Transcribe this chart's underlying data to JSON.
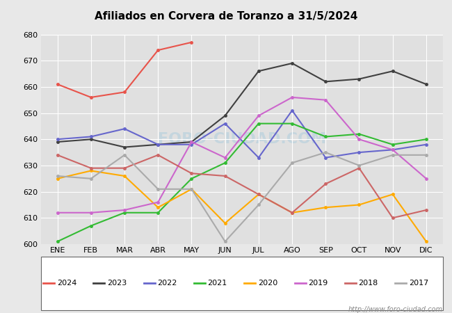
{
  "title": "Afiliados en Corvera de Toranzo a 31/5/2024",
  "ylim": [
    600,
    680
  ],
  "yticks": [
    600,
    610,
    620,
    630,
    640,
    650,
    660,
    670,
    680
  ],
  "months": [
    "ENE",
    "FEB",
    "MAR",
    "ABR",
    "MAY",
    "JUN",
    "JUL",
    "AGO",
    "SEP",
    "OCT",
    "NOV",
    "DIC"
  ],
  "series": {
    "2024": {
      "color": "#e8534a",
      "data": [
        661,
        656,
        658,
        674,
        677,
        null,
        null,
        null,
        null,
        null,
        null,
        null
      ]
    },
    "2023": {
      "color": "#404040",
      "data": [
        639,
        640,
        637,
        638,
        639,
        649,
        666,
        669,
        662,
        663,
        666,
        661
      ]
    },
    "2022": {
      "color": "#6666cc",
      "data": [
        640,
        641,
        644,
        638,
        638,
        646,
        633,
        651,
        633,
        635,
        636,
        638
      ]
    },
    "2021": {
      "color": "#33bb33",
      "data": [
        601,
        607,
        612,
        612,
        625,
        631,
        646,
        646,
        641,
        642,
        638,
        640
      ]
    },
    "2020": {
      "color": "#ffaa00",
      "data": [
        625,
        628,
        626,
        614,
        621,
        608,
        619,
        612,
        614,
        615,
        619,
        601
      ]
    },
    "2019": {
      "color": "#cc66cc",
      "data": [
        612,
        612,
        613,
        616,
        639,
        633,
        649,
        656,
        655,
        640,
        636,
        625
      ]
    },
    "2018": {
      "color": "#cc6666",
      "data": [
        634,
        629,
        629,
        634,
        627,
        626,
        619,
        612,
        623,
        629,
        610,
        613
      ]
    },
    "2017": {
      "color": "#aaaaaa",
      "data": [
        626,
        625,
        634,
        621,
        621,
        601,
        615,
        631,
        635,
        630,
        634,
        634
      ]
    }
  },
  "legend_order": [
    "2024",
    "2023",
    "2022",
    "2021",
    "2020",
    "2019",
    "2018",
    "2017"
  ],
  "watermark": "http://www.foro-ciudad.com",
  "bg_color": "#e8e8e8",
  "plot_bg_color": "#e0e0e0",
  "grid_color": "#ffffff",
  "header_color": "#5588bb"
}
